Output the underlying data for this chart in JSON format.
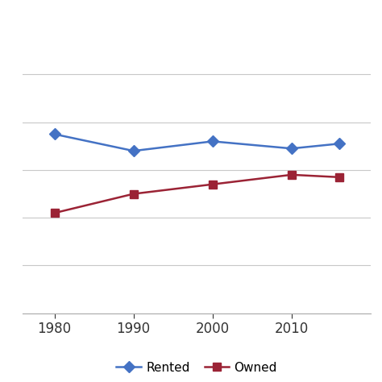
{
  "x": [
    1980,
    1990,
    2000,
    2010,
    2016
  ],
  "rented": [
    0.75,
    0.68,
    0.72,
    0.69,
    0.71
  ],
  "owned": [
    0.42,
    0.5,
    0.54,
    0.58,
    0.57
  ],
  "rented_color": "#4472C4",
  "owned_color": "#9B2335",
  "rented_label": "Rented",
  "owned_label": "Owned",
  "xticks": [
    1980,
    1990,
    2000,
    2010
  ],
  "xlim": [
    1976,
    2020
  ],
  "ylim": [
    0.0,
    1.2
  ],
  "yticks": [
    0.0,
    0.2,
    0.4,
    0.6,
    0.8,
    1.0
  ],
  "background_color": "#ffffff",
  "grid_color": "#c8c8c8",
  "tick_fontsize": 12,
  "legend_fontsize": 11,
  "linewidth": 1.8,
  "markersize": 7
}
